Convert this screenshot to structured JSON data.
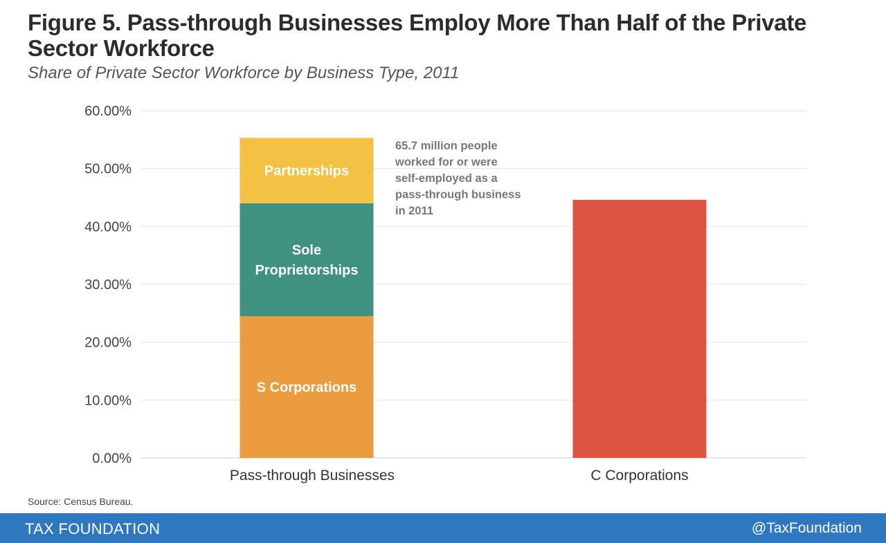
{
  "chart_data": {
    "type": "bar",
    "stacked": true,
    "title": "Figure 5. Pass-through Businesses Employ More Than Half of the Private Sector Workforce",
    "subtitle": "Share of Private Sector Workforce by Business Type, 2011",
    "categories": [
      "Pass-through Businesses",
      "C Corporations"
    ],
    "ylim": [
      0,
      60
    ],
    "yticks": [
      0,
      10,
      20,
      30,
      40,
      50,
      60
    ],
    "ytick_labels": [
      "0.00%",
      "10.00%",
      "20.00%",
      "30.00%",
      "40.00%",
      "50.00%",
      "60.00%"
    ],
    "gridlines": true,
    "stacks": [
      {
        "category": "Pass-through Businesses",
        "segments": [
          {
            "name": "S Corporations",
            "label": "S Corporations",
            "value": 24.5,
            "color": "#eb9c3f"
          },
          {
            "name": "Sole Proprietorships",
            "label_lines": [
              "Sole",
              "Proprietorships"
            ],
            "value": 19.5,
            "color": "#3f9182"
          },
          {
            "name": "Partnerships",
            "label": "Partnerships",
            "value": 11.3,
            "color": "#f3c244"
          }
        ]
      },
      {
        "category": "C Corporations",
        "segments": [
          {
            "name": "C Corporations",
            "label": "",
            "value": 44.6,
            "color": "#de5442"
          }
        ]
      }
    ],
    "annotation_lines": [
      "65.7 million people",
      "worked for or were",
      "self-employed as a",
      "pass-through business",
      "in 2011"
    ]
  },
  "source": "Source: Census Bureau.",
  "footer": {
    "brand": "TAX FOUNDATION",
    "handle": "@TaxFoundation",
    "color": "#2f78c0"
  }
}
